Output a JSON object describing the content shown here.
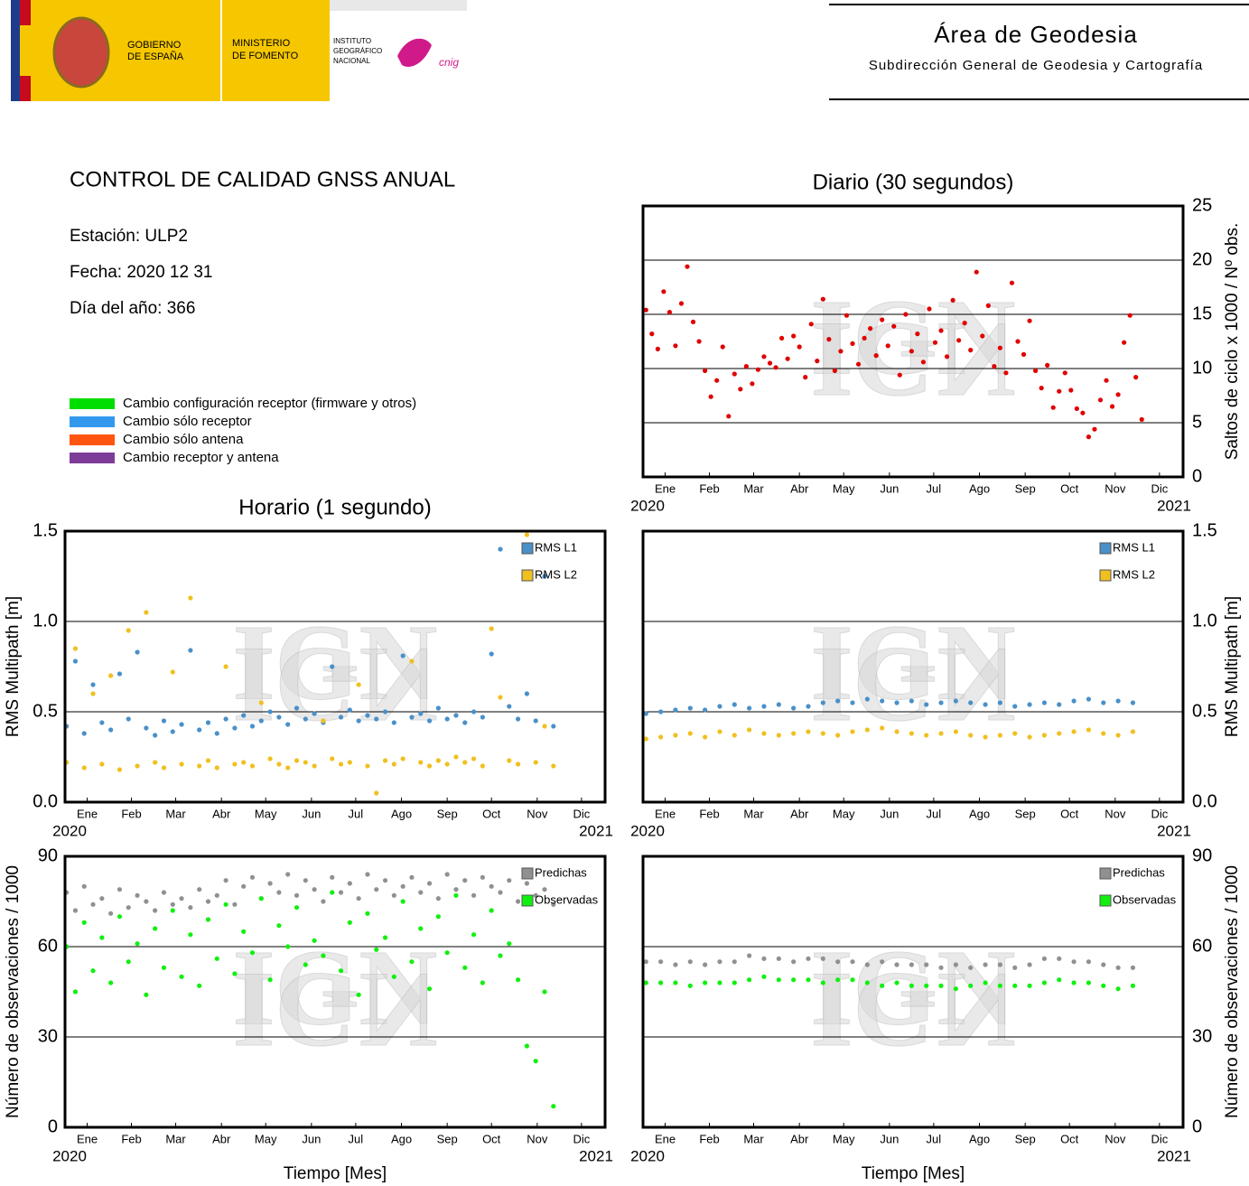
{
  "header": {
    "gov_lines": [
      "GOBIERNO",
      "DE ESPAÑA"
    ],
    "ministry_lines": [
      "MINISTERIO",
      "DE FOMENTO"
    ],
    "institute_lines": [
      "INSTITUTO",
      "GEOGRÁFICO",
      "NACIONAL"
    ],
    "cnig": "cnig",
    "area": "Área de Geodesia",
    "subdirection": "Subdirección General de Geodesia y Cartografía"
  },
  "info": {
    "title": "CONTROL DE CALIDAD GNSS ANUAL",
    "station": "Estación: ULP2",
    "date": "Fecha: 2020 12 31",
    "doy": "Día del año: 366"
  },
  "legend": [
    {
      "label": "Cambio configuración receptor (firmware y otros)",
      "color": "#00dd00"
    },
    {
      "label": "Cambio sólo receptor",
      "color": "#3399ee"
    },
    {
      "label": "Cambio sólo antena",
      "color": "#ff5511"
    },
    {
      "label": "Cambio receptor y antena",
      "color": "#7d3c98"
    }
  ],
  "watermark": "IGN",
  "chart_data": [
    {
      "type": "scatter",
      "title": "Diario (30 segundos)",
      "ylabel": "Saltos de ciclo x 1000 / Nº obs.",
      "yaxis_side": "right",
      "grid": true,
      "color": "#e00000",
      "xlim": [
        0,
        366
      ],
      "x_range_labels": [
        "2020",
        "2021"
      ],
      "xticks": [
        {
          "value": 15,
          "label": "Ene"
        },
        {
          "value": 45,
          "label": "Feb"
        },
        {
          "value": 75,
          "label": "Mar"
        },
        {
          "value": 106,
          "label": "Abr"
        },
        {
          "value": 136,
          "label": "May"
        },
        {
          "value": 167,
          "label": "Jun"
        },
        {
          "value": 197,
          "label": "Jul"
        },
        {
          "value": 228,
          "label": "Ago"
        },
        {
          "value": 259,
          "label": "Sep"
        },
        {
          "value": 289,
          "label": "Oct"
        },
        {
          "value": 320,
          "label": "Nov"
        },
        {
          "value": 350,
          "label": "Dic"
        }
      ],
      "ylim": [
        0,
        25
      ],
      "yticks": [
        0,
        5,
        10,
        15,
        20,
        25
      ],
      "x": [
        2,
        6,
        10,
        14,
        18,
        22,
        26,
        30,
        34,
        38,
        42,
        46,
        50,
        54,
        58,
        62,
        66,
        70,
        74,
        78,
        82,
        86,
        90,
        94,
        98,
        102,
        106,
        110,
        114,
        118,
        122,
        126,
        130,
        134,
        138,
        142,
        146,
        150,
        154,
        158,
        162,
        166,
        170,
        174,
        178,
        182,
        186,
        190,
        194,
        198,
        202,
        206,
        210,
        214,
        218,
        222,
        226,
        230,
        234,
        238,
        242,
        246,
        250,
        254,
        258,
        262,
        266,
        270,
        274,
        278,
        282,
        286,
        290,
        294,
        298,
        302,
        306,
        310,
        314,
        318,
        322,
        326,
        330,
        334,
        338
      ],
      "values": [
        15.4,
        13.2,
        11.8,
        17.1,
        15.2,
        12.1,
        16.0,
        19.4,
        14.3,
        12.5,
        9.8,
        7.4,
        8.9,
        12.0,
        5.6,
        9.5,
        8.1,
        10.2,
        8.6,
        9.9,
        11.1,
        10.5,
        10.1,
        12.8,
        10.9,
        13.0,
        12.0,
        9.2,
        14.1,
        10.7,
        16.4,
        12.7,
        9.8,
        11.6,
        14.9,
        12.3,
        10.4,
        12.8,
        13.7,
        11.2,
        14.5,
        12.1,
        13.9,
        9.4,
        15.0,
        11.6,
        13.2,
        10.6,
        15.5,
        12.4,
        13.5,
        11.1,
        16.3,
        12.6,
        14.2,
        11.7,
        18.9,
        13.0,
        15.8,
        10.2,
        11.9,
        9.6,
        17.9,
        12.5,
        11.3,
        14.4,
        9.8,
        8.2,
        10.3,
        6.4,
        7.9,
        9.6,
        8.0,
        6.3,
        5.9,
        3.7,
        4.4,
        7.1,
        8.9,
        6.5,
        7.6,
        12.4,
        14.9,
        9.2,
        5.3
      ]
    },
    {
      "type": "scatter",
      "title": "Horario (1 segundo)",
      "ylabel": "RMS Multipath [m]",
      "yaxis_side": "left",
      "grid": true,
      "legend_corner": "top-right",
      "xlim": [
        0,
        366
      ],
      "x_range_labels": [
        "2020",
        "2021"
      ],
      "xticks": [
        {
          "value": 15,
          "label": "Ene"
        },
        {
          "value": 45,
          "label": "Feb"
        },
        {
          "value": 75,
          "label": "Mar"
        },
        {
          "value": 106,
          "label": "Abr"
        },
        {
          "value": 136,
          "label": "May"
        },
        {
          "value": 167,
          "label": "Jun"
        },
        {
          "value": 197,
          "label": "Jul"
        },
        {
          "value": 228,
          "label": "Ago"
        },
        {
          "value": 259,
          "label": "Sep"
        },
        {
          "value": 289,
          "label": "Oct"
        },
        {
          "value": 320,
          "label": "Nov"
        },
        {
          "value": 350,
          "label": "Dic"
        }
      ],
      "ylim": [
        0,
        1.5
      ],
      "yticks": [
        {
          "value": 0,
          "label": "0.0"
        },
        0.5,
        {
          "value": 1,
          "label": "1.0"
        },
        1.5
      ],
      "x": [
        1,
        7,
        13,
        19,
        25,
        31,
        37,
        43,
        49,
        55,
        61,
        67,
        73,
        79,
        85,
        91,
        97,
        103,
        109,
        115,
        121,
        127,
        133,
        139,
        145,
        151,
        157,
        163,
        169,
        175,
        181,
        187,
        193,
        199,
        205,
        211,
        217,
        223,
        229,
        235,
        241,
        247,
        253,
        259,
        265,
        271,
        277,
        283,
        289,
        295,
        301,
        307,
        313,
        319,
        325,
        331
      ],
      "series": [
        {
          "name": "RMS L1",
          "color": "#4a90c8",
          "values": [
            0.42,
            0.78,
            0.38,
            0.65,
            0.44,
            0.4,
            0.71,
            0.46,
            0.83,
            0.41,
            0.37,
            0.45,
            0.39,
            0.43,
            0.84,
            0.4,
            0.44,
            0.38,
            0.46,
            0.41,
            0.48,
            0.42,
            0.45,
            0.5,
            0.47,
            0.43,
            0.52,
            0.46,
            0.49,
            0.44,
            0.75,
            0.47,
            0.51,
            0.45,
            0.48,
            0.46,
            0.5,
            0.44,
            0.81,
            0.47,
            0.49,
            0.45,
            0.52,
            0.46,
            0.48,
            0.44,
            0.5,
            0.47,
            0.82,
            1.4,
            0.53,
            0.46,
            0.6,
            0.45,
            1.25,
            0.42
          ]
        },
        {
          "name": "RMS L2",
          "color": "#f0c020",
          "values": [
            0.22,
            0.85,
            0.19,
            0.6,
            0.21,
            0.7,
            0.18,
            0.95,
            0.2,
            1.05,
            0.22,
            0.19,
            0.72,
            0.21,
            1.13,
            0.2,
            0.23,
            0.19,
            0.75,
            0.21,
            0.22,
            0.2,
            0.55,
            0.24,
            0.21,
            0.19,
            0.23,
            0.22,
            0.2,
            0.45,
            0.24,
            0.21,
            0.22,
            0.65,
            0.2,
            0.05,
            0.23,
            0.21,
            0.24,
            0.78,
            0.22,
            0.2,
            0.23,
            0.21,
            0.25,
            0.22,
            0.24,
            0.2,
            0.96,
            0.58,
            0.23,
            0.21,
            1.48,
            0.22,
            0.42,
            0.2
          ]
        }
      ]
    },
    {
      "type": "scatter",
      "ylabel": "RMS Multipath [m]",
      "yaxis_side": "right",
      "grid": true,
      "legend_corner": "top-right",
      "xlim": [
        0,
        366
      ],
      "x_range_labels": [
        "2020",
        "2021"
      ],
      "xticks": [
        {
          "value": 15,
          "label": "Ene"
        },
        {
          "value": 45,
          "label": "Feb"
        },
        {
          "value": 75,
          "label": "Mar"
        },
        {
          "value": 106,
          "label": "Abr"
        },
        {
          "value": 136,
          "label": "May"
        },
        {
          "value": 167,
          "label": "Jun"
        },
        {
          "value": 197,
          "label": "Jul"
        },
        {
          "value": 228,
          "label": "Ago"
        },
        {
          "value": 259,
          "label": "Sep"
        },
        {
          "value": 289,
          "label": "Oct"
        },
        {
          "value": 320,
          "label": "Nov"
        },
        {
          "value": 350,
          "label": "Dic"
        }
      ],
      "ylim": [
        0,
        1.5
      ],
      "yticks": [
        {
          "value": 0,
          "label": "0.0"
        },
        0.5,
        {
          "value": 1,
          "label": "1.0"
        },
        1.5
      ],
      "x": [
        2,
        12,
        22,
        32,
        42,
        52,
        62,
        72,
        82,
        92,
        102,
        112,
        122,
        132,
        142,
        152,
        162,
        172,
        182,
        192,
        202,
        212,
        222,
        232,
        242,
        252,
        262,
        272,
        282,
        292,
        302,
        312,
        322,
        332
      ],
      "series": [
        {
          "name": "RMS L1",
          "color": "#4a90c8",
          "values": [
            0.49,
            0.5,
            0.51,
            0.52,
            0.51,
            0.53,
            0.54,
            0.52,
            0.53,
            0.54,
            0.52,
            0.53,
            0.55,
            0.56,
            0.55,
            0.57,
            0.56,
            0.55,
            0.56,
            0.54,
            0.55,
            0.56,
            0.55,
            0.54,
            0.55,
            0.53,
            0.54,
            0.55,
            0.54,
            0.56,
            0.57,
            0.55,
            0.56,
            0.55
          ]
        },
        {
          "name": "RMS L2",
          "color": "#f0c020",
          "values": [
            0.35,
            0.36,
            0.37,
            0.38,
            0.36,
            0.39,
            0.37,
            0.4,
            0.38,
            0.37,
            0.38,
            0.39,
            0.38,
            0.37,
            0.39,
            0.4,
            0.41,
            0.39,
            0.38,
            0.37,
            0.38,
            0.39,
            0.37,
            0.36,
            0.37,
            0.38,
            0.36,
            0.37,
            0.38,
            0.39,
            0.4,
            0.38,
            0.37,
            0.39
          ]
        }
      ]
    },
    {
      "type": "scatter",
      "ylabel": "Número de observaciones / 1000",
      "xlabel": "Tiempo [Mes]",
      "yaxis_side": "left",
      "grid": true,
      "legend_corner": "top-right",
      "xlim": [
        0,
        366
      ],
      "x_range_labels": [
        "2020",
        "2021"
      ],
      "xticks": [
        {
          "value": 15,
          "label": "Ene"
        },
        {
          "value": 45,
          "label": "Feb"
        },
        {
          "value": 75,
          "label": "Mar"
        },
        {
          "value": 106,
          "label": "Abr"
        },
        {
          "value": 136,
          "label": "May"
        },
        {
          "value": 167,
          "label": "Jun"
        },
        {
          "value": 197,
          "label": "Jul"
        },
        {
          "value": 228,
          "label": "Ago"
        },
        {
          "value": 259,
          "label": "Sep"
        },
        {
          "value": 289,
          "label": "Oct"
        },
        {
          "value": 320,
          "label": "Nov"
        },
        {
          "value": 350,
          "label": "Dic"
        }
      ],
      "ylim": [
        0,
        90
      ],
      "yticks": [
        0,
        30,
        60,
        90
      ],
      "x": [
        1,
        7,
        13,
        19,
        25,
        31,
        37,
        43,
        49,
        55,
        61,
        67,
        73,
        79,
        85,
        91,
        97,
        103,
        109,
        115,
        121,
        127,
        133,
        139,
        145,
        151,
        157,
        163,
        169,
        175,
        181,
        187,
        193,
        199,
        205,
        211,
        217,
        223,
        229,
        235,
        241,
        247,
        253,
        259,
        265,
        271,
        277,
        283,
        289,
        295,
        301,
        307,
        313,
        319,
        325,
        331
      ],
      "series": [
        {
          "name": "Predichas",
          "color": "#909090",
          "values": [
            78,
            72,
            80,
            74,
            76,
            71,
            79,
            73,
            77,
            75,
            72,
            78,
            74,
            76,
            73,
            79,
            75,
            77,
            82,
            74,
            80,
            83,
            76,
            81,
            78,
            84,
            77,
            82,
            79,
            75,
            83,
            78,
            81,
            76,
            84,
            79,
            82,
            77,
            80,
            83,
            78,
            81,
            76,
            84,
            79,
            82,
            77,
            83,
            80,
            78,
            82,
            75,
            81,
            77,
            79,
            74
          ]
        },
        {
          "name": "Observadas",
          "color": "#10f010",
          "values": [
            60,
            45,
            68,
            52,
            63,
            48,
            70,
            55,
            61,
            44,
            66,
            53,
            72,
            50,
            64,
            47,
            69,
            56,
            74,
            51,
            65,
            58,
            76,
            49,
            67,
            60,
            73,
            54,
            62,
            57,
            78,
            52,
            68,
            44,
            71,
            59,
            63,
            50,
            75,
            55,
            66,
            46,
            70,
            58,
            77,
            53,
            64,
            48,
            72,
            57,
            61,
            49,
            27,
            22,
            45,
            7
          ]
        }
      ]
    },
    {
      "type": "scatter",
      "ylabel": "Número de observaciones / 1000",
      "xlabel": "Tiempo [Mes]",
      "yaxis_side": "right",
      "grid": true,
      "legend_corner": "top-right",
      "xlim": [
        0,
        366
      ],
      "x_range_labels": [
        "2020",
        "2021"
      ],
      "xticks": [
        {
          "value": 15,
          "label": "Ene"
        },
        {
          "value": 45,
          "label": "Feb"
        },
        {
          "value": 75,
          "label": "Mar"
        },
        {
          "value": 106,
          "label": "Abr"
        },
        {
          "value": 136,
          "label": "May"
        },
        {
          "value": 167,
          "label": "Jun"
        },
        {
          "value": 197,
          "label": "Jul"
        },
        {
          "value": 228,
          "label": "Ago"
        },
        {
          "value": 259,
          "label": "Sep"
        },
        {
          "value": 289,
          "label": "Oct"
        },
        {
          "value": 320,
          "label": "Nov"
        },
        {
          "value": 350,
          "label": "Dic"
        }
      ],
      "ylim": [
        0,
        90
      ],
      "yticks": [
        0,
        30,
        60,
        90
      ],
      "x": [
        2,
        12,
        22,
        32,
        42,
        52,
        62,
        72,
        82,
        92,
        102,
        112,
        122,
        132,
        142,
        152,
        162,
        172,
        182,
        192,
        202,
        212,
        222,
        232,
        242,
        252,
        262,
        272,
        282,
        292,
        302,
        312,
        322,
        332
      ],
      "series": [
        {
          "name": "Predichas",
          "color": "#909090",
          "values": [
            55,
            55,
            54,
            55,
            54,
            55,
            55,
            57,
            56,
            56,
            55,
            56,
            56,
            55,
            55,
            54,
            55,
            54,
            54,
            54,
            53,
            54,
            53,
            54,
            54,
            53,
            54,
            56,
            56,
            55,
            55,
            54,
            53,
            53
          ]
        },
        {
          "name": "Observadas",
          "color": "#10f010",
          "values": [
            48,
            48,
            48,
            47,
            48,
            48,
            48,
            49,
            50,
            49,
            49,
            49,
            48,
            49,
            49,
            48,
            47,
            48,
            47,
            47,
            47,
            46,
            47,
            48,
            47,
            47,
            47,
            48,
            49,
            48,
            48,
            47,
            46,
            47
          ]
        }
      ]
    }
  ]
}
